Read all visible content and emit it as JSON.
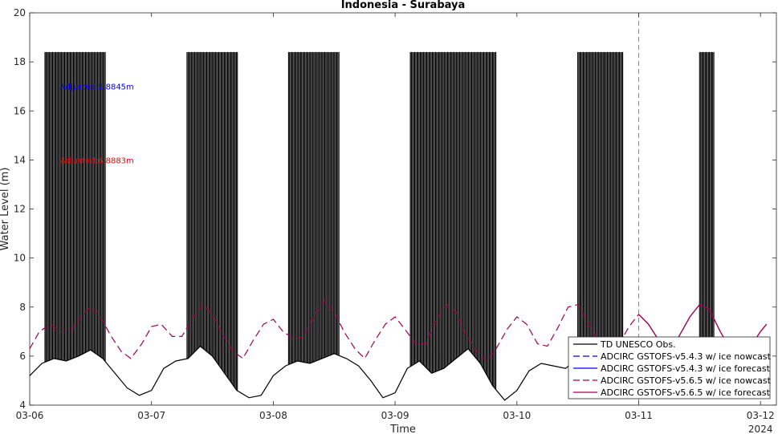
{
  "chart_data": {
    "type": "line",
    "title": "Indonesia - Surabaya",
    "xlabel": "Time",
    "ylabel": "Water Level (m)",
    "year_label": "2024",
    "xlim": [
      "03-06",
      "03-12 01:12"
    ],
    "ylim": [
      4,
      20
    ],
    "x_ticks": [
      "03-06",
      "03-07",
      "03-08",
      "03-09",
      "03-10",
      "03-11",
      "03-12"
    ],
    "y_ticks": [
      4,
      6,
      8,
      10,
      12,
      14,
      16,
      18,
      20
    ],
    "legend_position": "bottom-right",
    "nowcast_forecast_boundary": "03-11",
    "annotations": [
      {
        "text": "Adjusted:6.8845m",
        "color": "#0000ff",
        "x": "03-06 06:00",
        "y": 17.0
      },
      {
        "text": "Adjusted:6.8883m",
        "color": "#ff0000",
        "x": "03-06 06:00",
        "y": 14.0
      }
    ],
    "series": [
      {
        "name": "TD UNESCO Obs.",
        "color": "#000000",
        "style": "solid",
        "x_day_offsets": [
          0.0,
          0.1,
          0.2,
          0.3,
          0.4,
          0.5,
          0.6,
          0.7,
          0.8,
          0.9,
          1.0,
          1.1,
          1.2,
          1.3,
          1.4,
          1.5,
          1.6,
          1.7,
          1.8,
          1.9,
          2.0,
          2.1,
          2.2,
          2.3,
          2.4,
          2.5,
          2.6,
          2.7,
          2.8,
          2.9,
          3.0,
          3.1,
          3.2,
          3.3,
          3.4,
          3.5,
          3.6,
          3.7,
          3.8,
          3.9,
          4.0,
          4.1,
          4.2,
          4.3,
          4.4,
          4.5,
          4.6,
          4.7,
          4.8,
          4.9,
          5.0,
          5.1,
          5.2,
          5.3,
          5.4,
          5.5
        ],
        "y": [
          5.2,
          5.7,
          5.9,
          5.8,
          6.0,
          6.25,
          5.9,
          5.3,
          4.7,
          4.4,
          4.6,
          5.5,
          5.8,
          5.9,
          6.4,
          6.0,
          5.3,
          4.6,
          4.3,
          4.4,
          5.2,
          5.6,
          5.8,
          5.7,
          5.9,
          6.1,
          5.9,
          5.6,
          5.0,
          4.3,
          4.5,
          5.5,
          5.8,
          5.3,
          5.5,
          5.9,
          6.3,
          5.7,
          4.8,
          4.2,
          4.6,
          5.4,
          5.7,
          5.6,
          5.5,
          5.9,
          6.1,
          5.6,
          4.9,
          4.4,
          4.4,
          5.3,
          5.6,
          5.6,
          5.9,
          6.0
        ],
        "spike_value": 18.4,
        "spike_ranges": [
          [
            "03-06 03:00",
            "03-06 15:00"
          ],
          [
            "03-07 07:00",
            "03-07 17:00"
          ],
          [
            "03-08 03:00",
            "03-08 13:00"
          ],
          [
            "03-09 03:00",
            "03-09 20:00"
          ],
          [
            "03-10 12:00",
            "03-10 21:00"
          ],
          [
            "03-11 12:00",
            "03-11 15:00"
          ]
        ]
      },
      {
        "name": "ADCIRC GSTOFS-v5.4.3 w/ ice nowcast",
        "color": "#0000ff",
        "style": "dashed"
      },
      {
        "name": "ADCIRC GSTOFS-v5.4.3 w/ ice forecast",
        "color": "#0000ff",
        "style": "solid"
      },
      {
        "name": "ADCIRC GSTOFS-v5.6.5 w/ ice nowcast",
        "color": "#a00050",
        "style": "dashed",
        "x_day_offsets": [
          0.0,
          0.08,
          0.17,
          0.25,
          0.33,
          0.42,
          0.5,
          0.58,
          0.67,
          0.75,
          0.83,
          0.92,
          1.0,
          1.08,
          1.17,
          1.25,
          1.33,
          1.42,
          1.5,
          1.58,
          1.67,
          1.75,
          1.83,
          1.92,
          2.0,
          2.08,
          2.17,
          2.25,
          2.33,
          2.42,
          2.5,
          2.58,
          2.67,
          2.75,
          2.83,
          2.92,
          3.0,
          3.08,
          3.17,
          3.25,
          3.33,
          3.42,
          3.5,
          3.58,
          3.67,
          3.75,
          3.83,
          3.92,
          4.0,
          4.08,
          4.17,
          4.25,
          4.33,
          4.42,
          4.5,
          4.58,
          4.67,
          4.75,
          4.83,
          4.92,
          5.0
        ],
        "y": [
          6.3,
          7.0,
          7.3,
          7.0,
          7.0,
          7.6,
          8.0,
          7.6,
          6.8,
          6.2,
          5.9,
          6.5,
          7.2,
          7.3,
          6.8,
          6.8,
          7.5,
          8.1,
          7.7,
          6.9,
          6.2,
          5.9,
          6.6,
          7.3,
          7.5,
          7.0,
          6.7,
          6.8,
          7.6,
          8.3,
          7.8,
          7.0,
          6.3,
          5.9,
          6.6,
          7.3,
          7.6,
          7.1,
          6.5,
          6.5,
          7.4,
          8.1,
          7.8,
          6.9,
          6.2,
          5.8,
          6.3,
          7.1,
          7.6,
          7.3,
          6.5,
          6.4,
          7.1,
          8.0,
          8.1,
          7.4,
          6.6,
          6.0,
          6.4,
          7.2,
          7.7
        ]
      },
      {
        "name": "ADCIRC GSTOFS-v5.6.5 w/ ice forecast",
        "color": "#a00050",
        "style": "solid",
        "x_day_offsets": [
          5.0,
          5.08,
          5.17,
          5.25,
          5.33,
          5.42,
          5.5,
          5.58,
          5.67,
          5.75,
          5.83,
          5.92,
          6.0,
          6.05
        ],
        "y": [
          7.7,
          7.3,
          6.6,
          6.3,
          6.8,
          7.6,
          8.1,
          7.9,
          7.0,
          6.3,
          6.0,
          6.4,
          7.0,
          7.3
        ]
      }
    ]
  }
}
